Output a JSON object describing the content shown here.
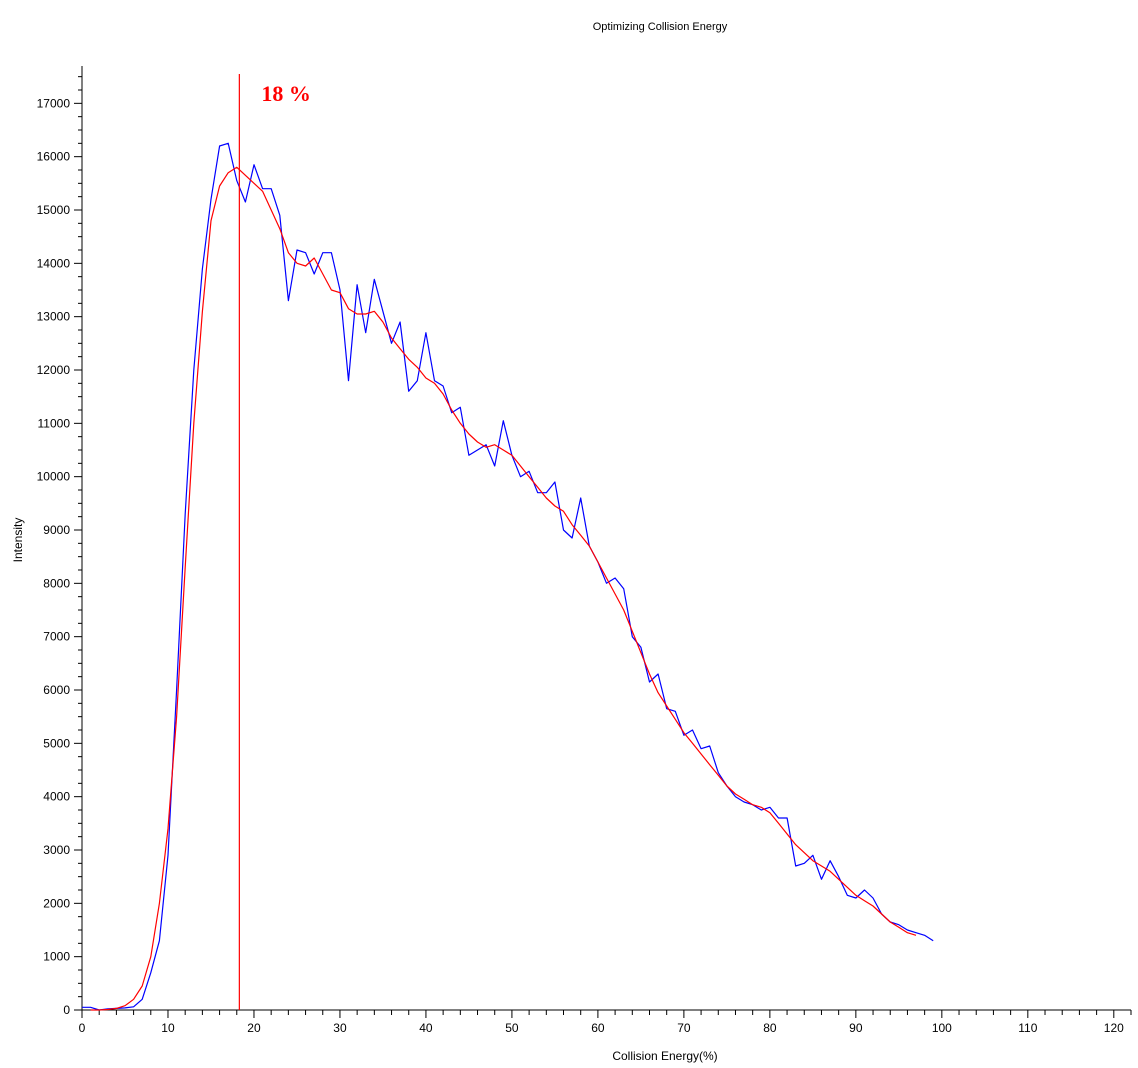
{
  "chart_data": {
    "type": "line",
    "title": "Optimizing Collision Energy",
    "xlabel": "Collision Energy(%)",
    "ylabel": "Intensity",
    "xlim": [
      0,
      122
    ],
    "ylim": [
      0,
      17700
    ],
    "x_ticks": [
      0,
      10,
      20,
      30,
      40,
      50,
      60,
      70,
      80,
      90,
      100,
      110,
      120
    ],
    "y_ticks": [
      0,
      1000,
      2000,
      3000,
      4000,
      5000,
      6000,
      7000,
      8000,
      9000,
      10000,
      11000,
      12000,
      13000,
      14000,
      15000,
      16000,
      17000
    ],
    "grid": false,
    "legend": "none",
    "colors": {
      "raw": "#0000ff",
      "smoothed": "#ff0000",
      "marker": "#ff0000"
    },
    "annotation": {
      "label": "18 %",
      "x": 18.3
    },
    "series": [
      {
        "points": [
          [
            0,
            50
          ],
          [
            1,
            50
          ],
          [
            2,
            0
          ],
          [
            3,
            20
          ],
          [
            4,
            30
          ],
          [
            5,
            40
          ],
          [
            6,
            60
          ],
          [
            7,
            200
          ],
          [
            8,
            700
          ],
          [
            9,
            1300
          ],
          [
            10,
            2900
          ],
          [
            11,
            6000
          ],
          [
            12,
            9300
          ],
          [
            13,
            12000
          ],
          [
            14,
            13900
          ],
          [
            15,
            15200
          ],
          [
            16,
            16200
          ],
          [
            17,
            16250
          ],
          [
            18,
            15550
          ],
          [
            19,
            15150
          ],
          [
            20,
            15850
          ],
          [
            21,
            15400
          ],
          [
            22,
            15400
          ],
          [
            23,
            14900
          ],
          [
            24,
            13300
          ],
          [
            25,
            14250
          ],
          [
            26,
            14200
          ],
          [
            27,
            13800
          ],
          [
            28,
            14200
          ],
          [
            29,
            14200
          ],
          [
            30,
            13500
          ],
          [
            31,
            11800
          ],
          [
            32,
            13600
          ],
          [
            33,
            12700
          ],
          [
            34,
            13700
          ],
          [
            35,
            13100
          ],
          [
            36,
            12500
          ],
          [
            37,
            12900
          ],
          [
            38,
            11600
          ],
          [
            39,
            11800
          ],
          [
            40,
            12700
          ],
          [
            41,
            11800
          ],
          [
            42,
            11700
          ],
          [
            43,
            11200
          ],
          [
            44,
            11300
          ],
          [
            45,
            10400
          ],
          [
            46,
            10500
          ],
          [
            47,
            10600
          ],
          [
            48,
            10200
          ],
          [
            49,
            11050
          ],
          [
            50,
            10400
          ],
          [
            51,
            10000
          ],
          [
            52,
            10100
          ],
          [
            53,
            9700
          ],
          [
            54,
            9700
          ],
          [
            55,
            9900
          ],
          [
            56,
            9000
          ],
          [
            57,
            8850
          ],
          [
            58,
            9600
          ],
          [
            59,
            8700
          ],
          [
            60,
            8400
          ],
          [
            61,
            8000
          ],
          [
            62,
            8100
          ],
          [
            63,
            7900
          ],
          [
            64,
            7000
          ],
          [
            65,
            6800
          ],
          [
            66,
            6150
          ],
          [
            67,
            6300
          ],
          [
            68,
            5650
          ],
          [
            69,
            5600
          ],
          [
            70,
            5150
          ],
          [
            71,
            5250
          ],
          [
            72,
            4900
          ],
          [
            73,
            4950
          ],
          [
            74,
            4450
          ],
          [
            75,
            4200
          ],
          [
            76,
            4000
          ],
          [
            77,
            3900
          ],
          [
            78,
            3850
          ],
          [
            79,
            3750
          ],
          [
            80,
            3800
          ],
          [
            81,
            3600
          ],
          [
            82,
            3600
          ],
          [
            83,
            2700
          ],
          [
            84,
            2750
          ],
          [
            85,
            2900
          ],
          [
            86,
            2450
          ],
          [
            87,
            2800
          ],
          [
            88,
            2500
          ],
          [
            89,
            2150
          ],
          [
            90,
            2100
          ],
          [
            91,
            2250
          ],
          [
            92,
            2100
          ],
          [
            93,
            1800
          ],
          [
            94,
            1650
          ],
          [
            95,
            1600
          ],
          [
            96,
            1500
          ],
          [
            97,
            1450
          ],
          [
            98,
            1400
          ],
          [
            99,
            1300
          ]
        ]
      },
      {
        "points": [
          [
            1,
            0
          ],
          [
            2,
            0
          ],
          [
            3,
            10
          ],
          [
            4,
            30
          ],
          [
            5,
            80
          ],
          [
            6,
            200
          ],
          [
            7,
            450
          ],
          [
            8,
            1000
          ],
          [
            9,
            2000
          ],
          [
            10,
            3400
          ],
          [
            11,
            5500
          ],
          [
            12,
            8300
          ],
          [
            13,
            11000
          ],
          [
            14,
            13100
          ],
          [
            15,
            14800
          ],
          [
            16,
            15450
          ],
          [
            17,
            15700
          ],
          [
            18,
            15800
          ],
          [
            19,
            15650
          ],
          [
            20,
            15500
          ],
          [
            21,
            15350
          ],
          [
            22,
            15000
          ],
          [
            23,
            14650
          ],
          [
            24,
            14200
          ],
          [
            25,
            14000
          ],
          [
            26,
            13950
          ],
          [
            27,
            14100
          ],
          [
            28,
            13800
          ],
          [
            29,
            13500
          ],
          [
            30,
            13450
          ],
          [
            31,
            13150
          ],
          [
            32,
            13050
          ],
          [
            33,
            13050
          ],
          [
            34,
            13100
          ],
          [
            35,
            12900
          ],
          [
            36,
            12600
          ],
          [
            37,
            12400
          ],
          [
            38,
            12200
          ],
          [
            39,
            12050
          ],
          [
            40,
            11850
          ],
          [
            41,
            11750
          ],
          [
            42,
            11550
          ],
          [
            43,
            11250
          ],
          [
            44,
            11000
          ],
          [
            45,
            10800
          ],
          [
            46,
            10650
          ],
          [
            47,
            10550
          ],
          [
            48,
            10600
          ],
          [
            49,
            10500
          ],
          [
            50,
            10400
          ],
          [
            51,
            10200
          ],
          [
            52,
            10000
          ],
          [
            53,
            9800
          ],
          [
            54,
            9600
          ],
          [
            55,
            9450
          ],
          [
            56,
            9350
          ],
          [
            57,
            9100
          ],
          [
            58,
            8900
          ],
          [
            59,
            8700
          ],
          [
            60,
            8400
          ],
          [
            61,
            8100
          ],
          [
            62,
            7800
          ],
          [
            63,
            7500
          ],
          [
            64,
            7100
          ],
          [
            65,
            6700
          ],
          [
            66,
            6300
          ],
          [
            67,
            5950
          ],
          [
            68,
            5700
          ],
          [
            69,
            5450
          ],
          [
            70,
            5200
          ],
          [
            71,
            5000
          ],
          [
            72,
            4800
          ],
          [
            73,
            4600
          ],
          [
            74,
            4400
          ],
          [
            75,
            4200
          ],
          [
            76,
            4050
          ],
          [
            77,
            3950
          ],
          [
            78,
            3850
          ],
          [
            79,
            3800
          ],
          [
            80,
            3700
          ],
          [
            81,
            3500
          ],
          [
            82,
            3300
          ],
          [
            83,
            3100
          ],
          [
            84,
            2950
          ],
          [
            85,
            2800
          ],
          [
            86,
            2700
          ],
          [
            87,
            2600
          ],
          [
            88,
            2450
          ],
          [
            89,
            2300
          ],
          [
            90,
            2150
          ],
          [
            91,
            2050
          ],
          [
            92,
            1950
          ],
          [
            93,
            1800
          ],
          [
            94,
            1650
          ],
          [
            95,
            1550
          ],
          [
            96,
            1450
          ],
          [
            97,
            1400
          ]
        ]
      }
    ]
  }
}
